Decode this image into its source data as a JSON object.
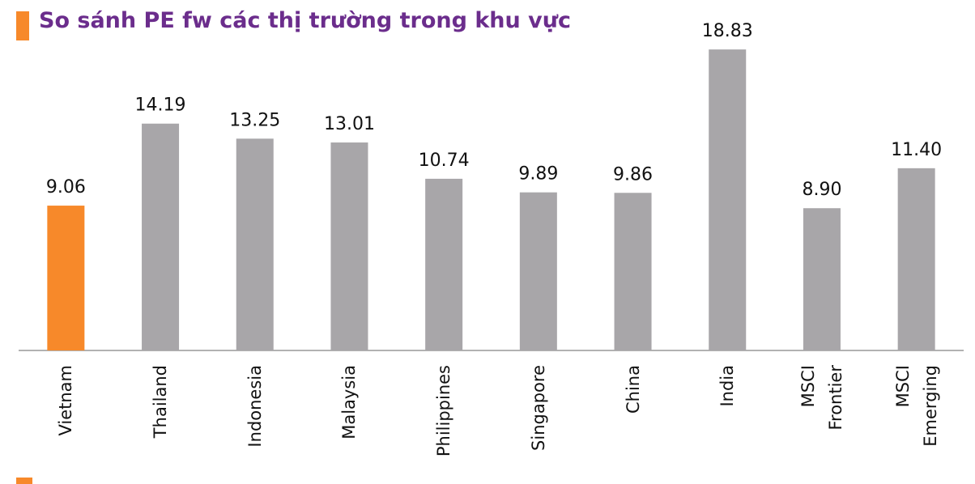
{
  "chart_data": {
    "type": "bar",
    "title": "So sánh PE fw các thị trường trong khu vực",
    "categories": [
      "Vietnam",
      "Thailand",
      "Indonesia",
      "Malaysia",
      "Philippines",
      "Singapore",
      "China",
      "India",
      "MSCI Frontier",
      "MSCI Emerging"
    ],
    "values": [
      9.06,
      14.19,
      13.25,
      13.01,
      10.74,
      9.89,
      9.86,
      18.83,
      8.9,
      11.4
    ],
    "value_labels": [
      "9.06",
      "14.19",
      "13.25",
      "13.01",
      "10.74",
      "9.89",
      "9.86",
      "18.83",
      "8.90",
      "11.40"
    ],
    "colors": [
      "#f7892a",
      "#a8a6a9",
      "#a8a6a9",
      "#a8a6a9",
      "#a8a6a9",
      "#a8a6a9",
      "#a8a6a9",
      "#a8a6a9",
      "#a8a6a9",
      "#a8a6a9"
    ],
    "ylim": [
      0,
      20
    ]
  }
}
